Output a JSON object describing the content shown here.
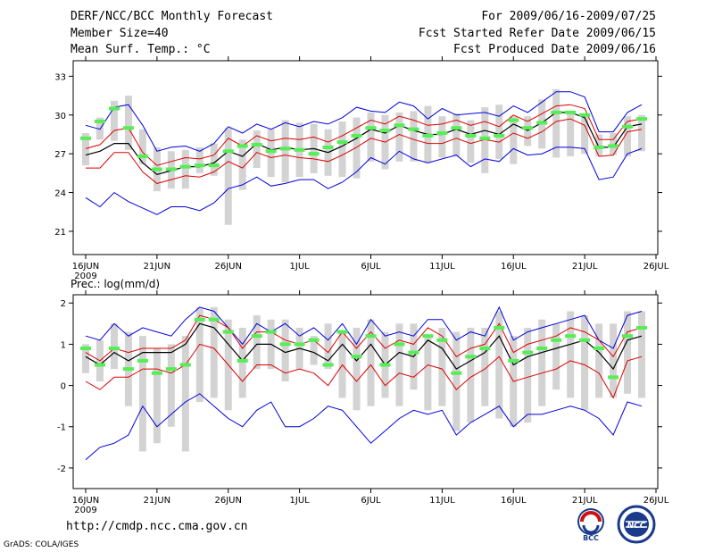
{
  "header": {
    "title": "DERF/NCC/BCC Monthly Forecast",
    "member": "Member Size=40",
    "variable": "Mean Surf. Temp.: °C",
    "period": "For 2009/06/16-2009/07/25",
    "started": "Fcst Started Refer Date 2009/06/15",
    "produced": "Fcst Produced Date 2009/06/16"
  },
  "footer": {
    "url": "http://cmdp.ncc.cma.gov.cn",
    "grads": "GrADS: COLA/IGES",
    "logo_bcc": "BCC",
    "logo_ncc": "NCC"
  },
  "colors": {
    "box": "#d3d3d3",
    "median": "#55ee55",
    "mean": "#000000",
    "sd": "#dd0000",
    "extreme": "#0000dd"
  },
  "chart_data": [
    {
      "type": "box",
      "title": "Mean Surf. Temp.: °C",
      "x_tick_labels": [
        "16JUN",
        "21JUN",
        "26JUN",
        "1JUL",
        "6JUL",
        "11JUL",
        "16JUL",
        "21JUL",
        "26JUL"
      ],
      "x_tick_days": [
        0,
        5,
        10,
        15,
        20,
        25,
        30,
        35,
        40
      ],
      "year_label": "2009",
      "y_ticks": [
        21,
        24,
        27,
        30,
        33
      ],
      "ylim": [
        19.2,
        34.2
      ],
      "box_low": [
        26.1,
        28.1,
        28.0,
        27.3,
        26.2,
        24.1,
        24.3,
        24.3,
        25.5,
        25.3,
        21.5,
        24.2,
        25.9,
        25.2,
        24.8,
        25.2,
        25.5,
        25.3,
        25.2,
        25.1,
        26.4,
        25.8,
        26.4,
        26.4,
        26.3,
        26.7,
        26.8,
        26.3,
        25.5,
        26.6,
        26.2,
        27.6,
        27.4,
        26.7,
        26.8,
        27.0,
        26.8,
        26.9,
        26.8,
        27.2
      ],
      "box_high": [
        28.6,
        29.8,
        31.1,
        31.5,
        28.9,
        27.5,
        27.2,
        27.3,
        27.5,
        27.8,
        29.0,
        28.1,
        28.8,
        28.9,
        29.6,
        29.4,
        29.3,
        28.9,
        29.5,
        29.8,
        30.2,
        30.0,
        30.2,
        30.3,
        30.7,
        29.9,
        30.1,
        29.6,
        30.6,
        30.8,
        29.9,
        29.9,
        31.2,
        32.0,
        30.3,
        30.0,
        28.5,
        28.6,
        29.9,
        30.0
      ],
      "median": [
        28.2,
        29.5,
        30.5,
        29.0,
        26.8,
        25.8,
        25.8,
        26.0,
        26.1,
        26.1,
        27.2,
        27.6,
        27.7,
        27.2,
        27.4,
        27.3,
        27.0,
        27.5,
        27.9,
        28.4,
        29.0,
        28.8,
        29.2,
        28.9,
        28.4,
        28.6,
        29.0,
        28.4,
        28.2,
        28.4,
        29.6,
        29.0,
        29.4,
        30.2,
        30.2,
        30.0,
        27.5,
        27.6,
        29.1,
        29.7
      ],
      "mean": [
        26.9,
        27.2,
        27.8,
        27.8,
        26.3,
        25.4,
        25.7,
        26.0,
        26.0,
        26.3,
        27.2,
        26.8,
        27.8,
        27.3,
        27.5,
        27.3,
        27.4,
        27.1,
        27.6,
        28.2,
        28.9,
        28.6,
        29.2,
        28.8,
        28.5,
        28.5,
        28.9,
        28.5,
        28.8,
        28.5,
        29.3,
        28.8,
        29.4,
        30.2,
        30.2,
        29.8,
        27.5,
        27.5,
        29.1,
        29.3
      ],
      "sd_upper": [
        27.4,
        27.7,
        28.8,
        29.0,
        27.1,
        26.1,
        26.4,
        26.7,
        26.6,
        26.9,
        28.2,
        27.6,
        28.4,
        28.0,
        28.2,
        28.1,
        28.3,
        27.9,
        28.4,
        29.0,
        29.6,
        29.3,
        29.9,
        29.6,
        29.2,
        29.3,
        29.6,
        29.2,
        29.5,
        29.1,
        30.0,
        29.5,
        30.1,
        30.7,
        30.8,
        30.5,
        28.1,
        28.1,
        29.5,
        29.7
      ],
      "sd_lower": [
        25.9,
        25.9,
        27.1,
        27.1,
        25.6,
        24.7,
        25.0,
        25.3,
        25.2,
        25.6,
        26.4,
        25.9,
        27.1,
        26.7,
        26.9,
        26.7,
        26.6,
        26.4,
        26.9,
        27.5,
        28.2,
        27.9,
        28.5,
        28.1,
        27.8,
        27.8,
        28.2,
        27.8,
        28.1,
        27.9,
        28.6,
        28.2,
        28.7,
        29.5,
        29.7,
        29.2,
        26.8,
        26.9,
        28.7,
        28.9
      ],
      "max_line": [
        29.2,
        28.9,
        30.6,
        30.8,
        29.2,
        27.2,
        27.5,
        27.6,
        27.2,
        27.8,
        29.1,
        28.6,
        29.3,
        28.9,
        29.4,
        29.1,
        29.5,
        29.3,
        29.8,
        30.6,
        30.3,
        30.2,
        31.0,
        30.7,
        29.7,
        30.5,
        30.0,
        30.1,
        30.2,
        29.9,
        30.7,
        30.2,
        31.0,
        31.8,
        31.8,
        31.4,
        28.7,
        28.7,
        30.2,
        30.8
      ],
      "min_line": [
        23.6,
        22.9,
        24.0,
        23.3,
        22.8,
        22.3,
        22.9,
        22.9,
        22.6,
        23.2,
        24.3,
        24.6,
        25.2,
        24.5,
        24.7,
        25.0,
        25.0,
        24.3,
        24.8,
        25.6,
        26.7,
        26.2,
        27.2,
        26.6,
        26.3,
        26.6,
        26.9,
        26.0,
        26.6,
        26.4,
        27.4,
        26.9,
        27.0,
        27.5,
        27.5,
        27.4,
        25.0,
        25.2,
        27.0,
        27.4
      ]
    },
    {
      "type": "box",
      "title": "Prec.: log(mm/d)",
      "x_tick_labels": [
        "16JUN",
        "21JUN",
        "26JUN",
        "1JUL",
        "6JUL",
        "11JUL",
        "16JUL",
        "21JUL",
        "26JUL"
      ],
      "x_tick_days": [
        0,
        5,
        10,
        15,
        20,
        25,
        30,
        35,
        40
      ],
      "year_label": "2009",
      "y_ticks": [
        -2,
        -1,
        0,
        1,
        2
      ],
      "ylim": [
        -2.5,
        2.2
      ],
      "box_low": [
        0.3,
        0.1,
        0.4,
        -0.5,
        -1.6,
        -1.4,
        -1.0,
        -1.6,
        -0.4,
        -0.3,
        -0.6,
        -0.3,
        0.4,
        0.4,
        0.1,
        0.4,
        0.5,
        0.4,
        -0.3,
        -0.6,
        -0.5,
        -0.3,
        -0.5,
        -0.1,
        -0.6,
        -0.5,
        -1.1,
        -0.9,
        -0.5,
        -0.8,
        -1.0,
        -0.9,
        -0.5,
        -0.1,
        -0.3,
        -0.6,
        -0.3,
        -0.3,
        -0.2,
        -0.3
      ],
      "box_high": [
        1.0,
        1.1,
        1.5,
        1.3,
        1.2,
        0.9,
        1.0,
        1.2,
        1.9,
        1.9,
        1.6,
        1.4,
        1.7,
        1.6,
        1.6,
        1.4,
        1.2,
        1.5,
        1.3,
        1.4,
        1.6,
        1.3,
        1.5,
        1.5,
        1.2,
        1.4,
        1.3,
        1.4,
        1.4,
        1.8,
        1.2,
        1.4,
        1.6,
        1.5,
        1.8,
        1.7,
        1.5,
        1.5,
        1.8,
        1.8
      ],
      "median": [
        0.9,
        0.5,
        0.9,
        0.4,
        0.6,
        0.3,
        0.4,
        0.5,
        1.6,
        1.6,
        1.3,
        0.6,
        1.2,
        1.3,
        1.0,
        1.0,
        1.1,
        0.5,
        1.3,
        0.7,
        1.2,
        0.5,
        1.0,
        0.8,
        1.2,
        1.1,
        0.3,
        0.7,
        0.9,
        1.4,
        0.6,
        0.8,
        0.9,
        1.1,
        1.2,
        1.1,
        0.9,
        0.2,
        1.2,
        1.4
      ],
      "mean": [
        0.7,
        0.5,
        0.8,
        0.6,
        0.8,
        0.8,
        0.8,
        1.0,
        1.5,
        1.4,
        1.0,
        0.6,
        1.0,
        1.0,
        0.8,
        0.9,
        0.8,
        0.6,
        1.0,
        0.6,
        1.0,
        0.5,
        0.8,
        0.7,
        1.1,
        0.9,
        0.4,
        0.6,
        0.8,
        1.2,
        0.5,
        0.7,
        0.8,
        0.9,
        1.0,
        1.1,
        0.8,
        0.4,
        1.1,
        1.2
      ],
      "sd_upper": [
        0.8,
        0.6,
        0.9,
        0.8,
        0.9,
        0.9,
        0.9,
        1.1,
        1.7,
        1.6,
        1.4,
        0.9,
        1.3,
        1.3,
        1.1,
        1.0,
        1.1,
        0.8,
        1.3,
        0.9,
        1.3,
        0.9,
        1.1,
        1.0,
        1.4,
        1.2,
        0.7,
        0.9,
        1.0,
        1.5,
        0.8,
        1.0,
        1.1,
        1.2,
        1.4,
        1.3,
        1.1,
        0.7,
        1.3,
        1.4
      ],
      "sd_lower": [
        0.1,
        -0.1,
        0.2,
        0.2,
        0.4,
        0.4,
        0.3,
        0.5,
        1.0,
        0.9,
        0.5,
        0.1,
        0.5,
        0.5,
        0.3,
        0.4,
        0.3,
        0.0,
        0.5,
        0.1,
        0.5,
        0.0,
        0.3,
        0.2,
        0.5,
        0.4,
        -0.1,
        0.2,
        0.4,
        0.7,
        0.1,
        0.2,
        0.3,
        0.4,
        0.6,
        0.5,
        0.3,
        -0.3,
        0.6,
        0.7
      ],
      "max_line": [
        1.2,
        1.1,
        1.5,
        1.2,
        1.4,
        1.3,
        1.2,
        1.6,
        1.9,
        1.8,
        1.4,
        1.0,
        1.5,
        1.3,
        1.5,
        1.2,
        1.4,
        1.1,
        1.5,
        1.0,
        1.6,
        1.2,
        1.3,
        1.2,
        1.6,
        1.6,
        1.1,
        1.3,
        1.2,
        1.9,
        1.1,
        1.3,
        1.4,
        1.5,
        1.6,
        1.7,
        1.1,
        0.9,
        1.7,
        1.8
      ],
      "min_line": [
        -1.8,
        -1.5,
        -1.4,
        -1.2,
        -0.5,
        -1.0,
        -0.7,
        -0.4,
        -0.2,
        -0.5,
        -0.8,
        -1.0,
        -0.6,
        -0.4,
        -1.0,
        -1.0,
        -0.8,
        -0.5,
        -0.6,
        -1.0,
        -1.4,
        -1.1,
        -0.8,
        -0.6,
        -0.7,
        -0.6,
        -1.2,
        -0.9,
        -0.7,
        -0.5,
        -1.0,
        -0.7,
        -0.7,
        -0.6,
        -0.5,
        -0.6,
        -0.8,
        -1.2,
        -0.4,
        -0.5
      ]
    }
  ]
}
